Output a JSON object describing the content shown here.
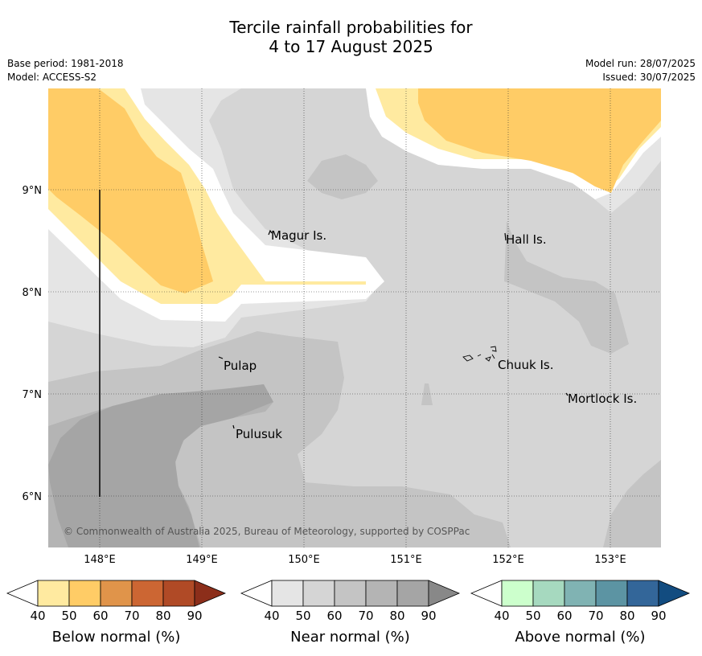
{
  "title": {
    "line1": "Tercile rainfall probabilities for",
    "line2": "4 to 17 August 2025"
  },
  "meta": {
    "base_period": "Base period: 1981-2018",
    "model": "Model: ACCESS-S2",
    "model_run": "Model run: 28/07/2025",
    "issued": "Issued: 30/07/2025"
  },
  "map": {
    "lon_ticks": [
      "148°E",
      "149°E",
      "150°E",
      "151°E",
      "152°E",
      "153°E"
    ],
    "lat_ticks": [
      "9°N",
      "8°N",
      "7°N",
      "6°N"
    ],
    "places": {
      "magur": "Magur Is.",
      "hall": "Hall Is.",
      "pulap": "Pulap",
      "chuuk": "Chuuk Is.",
      "mortlock": "Mortlock Is.",
      "pulusuk": "Pulusuk"
    },
    "credit": "© Commonwealth of Australia 2025, Bureau of Meteorology, supported by COSPPac"
  },
  "colorbars": [
    {
      "title": "Below normal (%)",
      "labels": [
        "40",
        "50",
        "60",
        "70",
        "80",
        "90"
      ],
      "colors": [
        "#ffeaa0",
        "#ffcc66",
        "#e0944a",
        "#cc6633",
        "#b04a26",
        "#8c2e1a"
      ]
    },
    {
      "title": "Near normal (%)",
      "labels": [
        "40",
        "50",
        "60",
        "70",
        "80",
        "90"
      ],
      "colors": [
        "#e5e5e5",
        "#d5d5d5",
        "#c4c4c4",
        "#b4b4b4",
        "#a5a5a5",
        "#888888"
      ]
    },
    {
      "title": "Above normal (%)",
      "labels": [
        "40",
        "50",
        "60",
        "70",
        "80",
        "90"
      ],
      "colors": [
        "#ccffcc",
        "#a6d9bf",
        "#80b3b3",
        "#5c94a3",
        "#336699",
        "#124c80"
      ]
    }
  ],
  "palette": {
    "below_40": "#ffeaa0",
    "below_50": "#ffcc66",
    "near_40": "#e5e5e5",
    "near_50": "#d5d5d5",
    "near_60": "#c4c4c4",
    "near_70": "#b4b4b4",
    "near_80": "#a5a5a5"
  }
}
